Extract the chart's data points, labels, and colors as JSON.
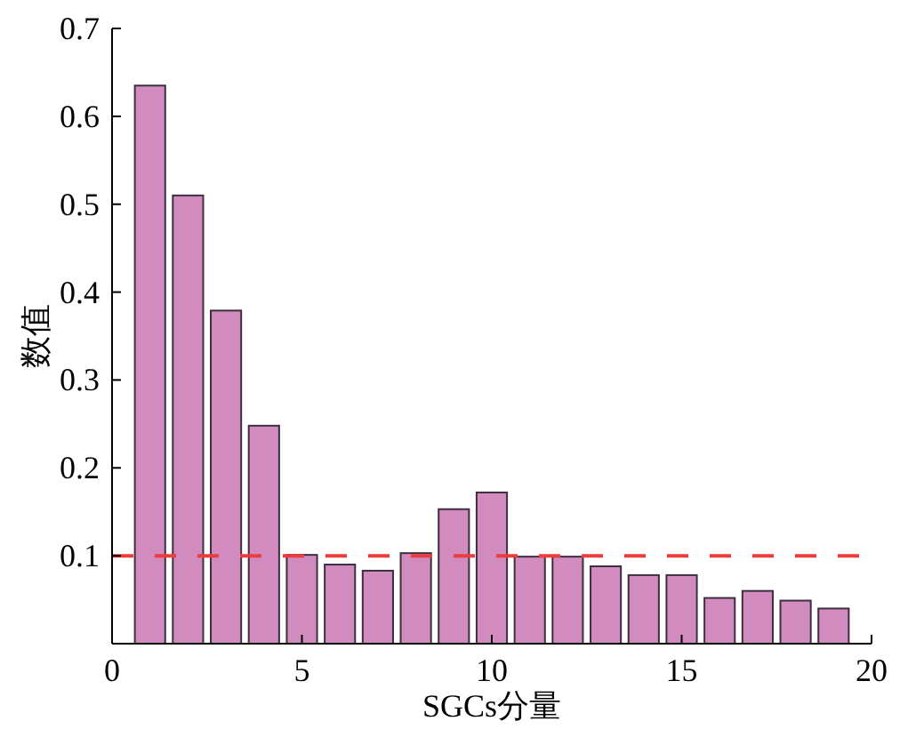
{
  "chart_data": {
    "type": "bar",
    "xlabel": "SGCs分量",
    "ylabel": "数值",
    "x": [
      1,
      2,
      3,
      4,
      5,
      6,
      7,
      8,
      9,
      10,
      11,
      12,
      13,
      14,
      15,
      16,
      17,
      18,
      19
    ],
    "values": [
      0.635,
      0.51,
      0.379,
      0.248,
      0.101,
      0.09,
      0.083,
      0.103,
      0.153,
      0.172,
      0.099,
      0.099,
      0.088,
      0.078,
      0.078,
      0.052,
      0.06,
      0.049,
      0.04
    ],
    "color": "#d18bbf",
    "xlim": [
      0,
      20
    ],
    "xticks": [
      0,
      5,
      10,
      15,
      20
    ],
    "ylim": [
      0,
      0.7
    ],
    "yticks": [
      0.1,
      0.2,
      0.3,
      0.4,
      0.5,
      0.6,
      0.7
    ],
    "ref_lines": [
      {
        "axis": "y",
        "value": 0.1,
        "color": "#ee3b3b",
        "line_style": "dashed"
      }
    ]
  }
}
